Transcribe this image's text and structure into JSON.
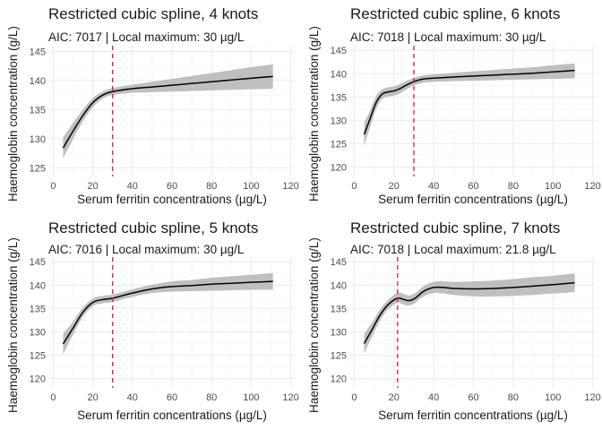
{
  "chart_data": [
    {
      "type": "line",
      "title": "Restricted cubic spline, 4 knots",
      "subtitle": "AIC: 7017  | Local maximum: 30 µg/L",
      "xlabel": "Serum ferritin concentrations (µg/L)",
      "ylabel": "Haemoglobin concentration (g/L)",
      "xlim": [
        -2,
        122
      ],
      "ylim": [
        123.5,
        146
      ],
      "xticks": [
        0,
        20,
        40,
        60,
        80,
        100,
        120
      ],
      "yticks": [
        125,
        130,
        135,
        140,
        145
      ],
      "vline": 30,
      "vline_color": "#e41a1c",
      "band_color": "#bfbfbf",
      "grid": true,
      "series": [
        {
          "x": [
            5,
            10,
            15,
            20,
            25,
            30,
            40,
            50,
            60,
            70,
            80,
            90,
            100,
            111
          ],
          "y": [
            128.4,
            131.3,
            134.0,
            136.2,
            137.5,
            138.1,
            138.6,
            138.9,
            139.2,
            139.5,
            139.8,
            140.1,
            140.4,
            140.7
          ],
          "lower": [
            126.6,
            129.9,
            133.0,
            135.4,
            136.9,
            137.5,
            137.9,
            138.0,
            138.1,
            138.2,
            138.3,
            138.4,
            138.5,
            138.6
          ],
          "upper": [
            130.2,
            132.7,
            135.0,
            137.0,
            138.1,
            138.7,
            139.3,
            139.8,
            140.3,
            140.8,
            141.3,
            141.8,
            142.3,
            142.8
          ]
        }
      ]
    },
    {
      "type": "line",
      "title": "Restricted cubic spline, 6 knots",
      "subtitle": "AIC: 7018  | Local maximum: 30 µg/L",
      "xlabel": "Serum ferritin concentrations (µg/L)",
      "ylabel": "Haemoglobin concentration (g/L)",
      "xlim": [
        -2,
        122
      ],
      "ylim": [
        118,
        146
      ],
      "xticks": [
        0,
        20,
        40,
        60,
        80,
        100,
        120
      ],
      "yticks": [
        120,
        125,
        130,
        135,
        140,
        145
      ],
      "vline": 30,
      "vline_color": "#e41a1c",
      "band_color": "#bfbfbf",
      "grid": true,
      "series": [
        {
          "x": [
            5,
            8,
            11,
            14,
            17,
            20,
            23,
            26,
            30,
            34,
            38,
            42,
            50,
            60,
            70,
            80,
            90,
            100,
            111
          ],
          "y": [
            127.0,
            130.4,
            133.8,
            135.6,
            136.1,
            136.3,
            136.8,
            137.5,
            138.3,
            138.8,
            139.0,
            139.1,
            139.3,
            139.5,
            139.7,
            139.9,
            140.1,
            140.4,
            140.7
          ],
          "lower": [
            124.6,
            128.6,
            132.4,
            134.6,
            135.1,
            135.3,
            135.8,
            136.6,
            137.5,
            138.0,
            138.2,
            138.3,
            138.4,
            138.5,
            138.6,
            138.7,
            138.8,
            138.9,
            139.0
          ],
          "upper": [
            129.4,
            132.2,
            135.2,
            136.6,
            137.1,
            137.3,
            137.8,
            138.4,
            139.1,
            139.6,
            139.8,
            139.9,
            140.2,
            140.5,
            140.8,
            141.1,
            141.4,
            141.8,
            142.2
          ]
        }
      ]
    },
    {
      "type": "line",
      "title": "Restricted cubic spline, 5 knots",
      "subtitle": "AIC: 7016  | Local maximum: 30 µg/L",
      "xlabel": "Serum ferritin concentrations (µg/L)",
      "ylabel": "Haemoglobin concentration (g/L)",
      "xlim": [
        -2,
        122
      ],
      "ylim": [
        118,
        146
      ],
      "xticks": [
        0,
        20,
        40,
        60,
        80,
        100,
        120
      ],
      "yticks": [
        120,
        125,
        130,
        135,
        140,
        145
      ],
      "vline": 30,
      "vline_color": "#e41a1c",
      "band_color": "#bfbfbf",
      "grid": true,
      "series": [
        {
          "x": [
            5,
            10,
            15,
            20,
            25,
            30,
            40,
            50,
            60,
            70,
            80,
            90,
            100,
            111
          ],
          "y": [
            127.4,
            130.8,
            134.2,
            136.3,
            136.9,
            137.2,
            138.3,
            139.2,
            139.7,
            139.9,
            140.2,
            140.4,
            140.6,
            140.8
          ],
          "lower": [
            125.2,
            129.4,
            133.2,
            135.5,
            136.1,
            136.4,
            137.5,
            138.3,
            138.6,
            138.7,
            138.8,
            138.9,
            139.0,
            139.0
          ],
          "upper": [
            129.6,
            132.2,
            135.2,
            137.1,
            137.7,
            138.0,
            139.1,
            140.1,
            140.8,
            141.1,
            141.6,
            141.9,
            142.2,
            142.6
          ]
        }
      ]
    },
    {
      "type": "line",
      "title": "Restricted cubic spline, 7 knots",
      "subtitle": "AIC: 7018  | Local maximum: 21.8 µg/L",
      "xlabel": "Serum ferritin concentrations (µg/L)",
      "ylabel": "Haemoglobin concentration (g/L)",
      "xlim": [
        -2,
        122
      ],
      "ylim": [
        118,
        146
      ],
      "xticks": [
        0,
        20,
        40,
        60,
        80,
        100,
        120
      ],
      "yticks": [
        120,
        125,
        130,
        135,
        140,
        145
      ],
      "vline": 21.8,
      "vline_color": "#e41a1c",
      "band_color": "#bfbfbf",
      "grid": true,
      "series": [
        {
          "x": [
            5,
            9,
            13,
            17,
            21.8,
            25,
            28,
            31,
            35,
            40,
            45,
            50,
            60,
            70,
            80,
            90,
            100,
            111
          ],
          "y": [
            127.5,
            130.5,
            133.6,
            135.8,
            137.2,
            136.9,
            136.7,
            137.3,
            138.7,
            139.5,
            139.5,
            139.3,
            139.2,
            139.3,
            139.5,
            139.8,
            140.1,
            140.5
          ],
          "lower": [
            125.4,
            129.0,
            132.4,
            134.8,
            136.2,
            135.8,
            135.7,
            136.3,
            137.6,
            138.3,
            138.2,
            137.9,
            137.6,
            137.6,
            137.7,
            137.9,
            138.2,
            138.5
          ],
          "upper": [
            129.6,
            132.0,
            134.8,
            136.8,
            138.4,
            138.1,
            137.8,
            138.4,
            139.8,
            140.7,
            140.8,
            140.7,
            140.8,
            141.0,
            141.3,
            141.7,
            142.0,
            142.5
          ]
        }
      ]
    }
  ]
}
